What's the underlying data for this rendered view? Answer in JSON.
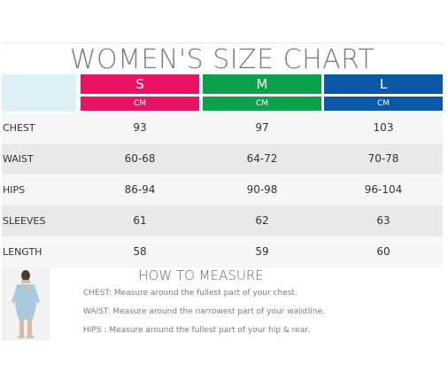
{
  "title": "WOMEN'S SIZE CHART",
  "sizes": [
    {
      "name": "S",
      "unit": "CM",
      "color": "#ea1264"
    },
    {
      "name": "M",
      "unit": "CM",
      "color": "#0aa14a"
    },
    {
      "name": "L",
      "unit": "CM",
      "color": "#0d57a7"
    }
  ],
  "rows": [
    {
      "label": "CHEST",
      "values": [
        "93",
        "97",
        "103"
      ]
    },
    {
      "label": "WAIST",
      "values": [
        "60-68",
        "64-72",
        "70-78"
      ]
    },
    {
      "label": "HIPS",
      "values": [
        "86-94",
        "90-98",
        "96-104"
      ]
    },
    {
      "label": "SLEEVES",
      "values": [
        "61",
        "62",
        "63"
      ]
    },
    {
      "label": "LENGTH",
      "values": [
        "58",
        "59",
        "60"
      ]
    }
  ],
  "measure": {
    "title": "HOW TO MEASURE",
    "lines": [
      "CHEST: Measure around the fullest part of your chest.",
      "WAIST: Measure around the narrowest part of your waistline.",
      "HIPS  : Measure around the fullest part of your hip & rear."
    ]
  }
}
